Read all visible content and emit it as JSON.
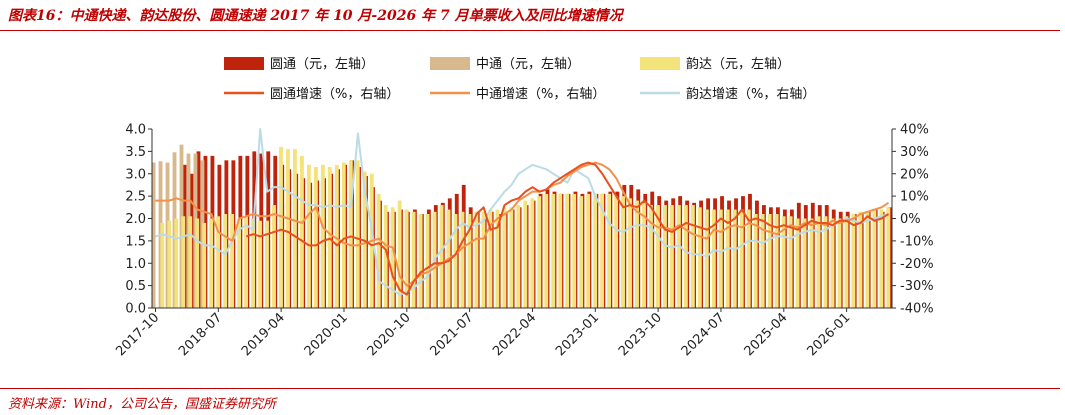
{
  "title": "图表16：中通快递、韵达股份、圆通速递 2017 年 10 月-2026 年 7 月单票收入及同比增速情况",
  "source": "资料来源：Wind，公司公告，国盛证券研究所",
  "colors": {
    "yto_bar": "#c0230b",
    "zto_bar": "#d7b98d",
    "yunda_bar": "#f4e27a",
    "yto_line": "#e8501e",
    "zto_line": "#f2914a",
    "yunda_line": "#bcdbe6",
    "accent": "#c00000"
  },
  "chart_data": {
    "type": "bar",
    "title": "",
    "xlabel": "",
    "ylabel": "",
    "ylim": [
      0,
      4
    ],
    "y2lim": [
      -40,
      40
    ],
    "y_ticks": [
      "0.0",
      "0.5",
      "1.0",
      "1.5",
      "2.0",
      "2.5",
      "3.0",
      "3.5",
      "4.0"
    ],
    "y2_ticks": [
      "-40%",
      "-30%",
      "-20%",
      "-10%",
      "0%",
      "10%",
      "20%",
      "30%",
      "40%"
    ],
    "x_tick_labels": [
      "2017-10",
      "2018-07",
      "2019-04",
      "2020-01",
      "2020-10",
      "2021-07",
      "2022-04",
      "2023-01",
      "2023-10",
      "2024-07",
      "2025-04",
      "2026-01"
    ],
    "legend_position": "top",
    "grid": false,
    "x_start": "2017-10",
    "x_end": "2026-07",
    "bar_series": [
      {
        "name": "圆通（元，左轴）",
        "color": "#c0230b",
        "start": "2018-02",
        "values": [
          3.2,
          3.0,
          3.5,
          3.4,
          3.4,
          3.2,
          3.3,
          3.3,
          3.4,
          3.4,
          3.5,
          3.45,
          3.5,
          3.4,
          3.2,
          3.1,
          3.0,
          2.9,
          2.8,
          2.85,
          2.9,
          3.0,
          3.1,
          3.2,
          3.3,
          3.15,
          2.95,
          2.7,
          2.4,
          2.15,
          2.15,
          2.2,
          2.15,
          2.2,
          2.1,
          2.2,
          2.3,
          2.35,
          2.45,
          2.55,
          2.75,
          2.25,
          2.15,
          2.1,
          2.15,
          2.1,
          2.15,
          2.2,
          2.25,
          2.3,
          2.4,
          2.55,
          2.65,
          2.6,
          2.55,
          2.55,
          2.6,
          2.55,
          2.6,
          2.55,
          2.55,
          2.6,
          2.6,
          2.75,
          2.75,
          2.65,
          2.55,
          2.6,
          2.5,
          2.4,
          2.45,
          2.5,
          2.4,
          2.35,
          2.4,
          2.45,
          2.45,
          2.5,
          2.4,
          2.45,
          2.5,
          2.55,
          2.4,
          2.3,
          2.25,
          2.25,
          2.2,
          2.2,
          2.35,
          2.3,
          2.35,
          2.3,
          2.3,
          2.2,
          2.15,
          2.15,
          2.1,
          2.1,
          2.15,
          2.2,
          2.15,
          2.25,
          2.2,
          2.2,
          2.25,
          2.35,
          2.45,
          2.3,
          2.2,
          2.3,
          2.3,
          2.25
        ]
      },
      {
        "name": "中通（元，左轴）",
        "color": "#d7b98d",
        "start": "2017-10",
        "end": "2018-05",
        "values": [
          3.25,
          3.28,
          3.25,
          3.48,
          3.65,
          3.45,
          3.45,
          3.3
        ]
      },
      {
        "name": "韵达（元，左轴）",
        "color": "#f4e27a",
        "start": "2017-11",
        "values": [
          1.9,
          1.95,
          2.0,
          2.05,
          2.05,
          2.0,
          1.9,
          2.0,
          2.05,
          2.1,
          2.1,
          2.0,
          2.05,
          2.0,
          1.95,
          1.95,
          2.3,
          3.6,
          3.55,
          3.55,
          3.4,
          3.2,
          3.15,
          3.2,
          3.15,
          3.2,
          3.25,
          3.3,
          3.3,
          3.05,
          3.0,
          2.55,
          2.3,
          2.25,
          2.4,
          2.2,
          2.15,
          2.1,
          2.1,
          2.15,
          2.3,
          2.2,
          2.1,
          2.15,
          2.1,
          2.15,
          2.15,
          2.2,
          2.2,
          2.25,
          2.25,
          2.3,
          2.4,
          2.45,
          2.5,
          2.55,
          2.55,
          2.55,
          2.55,
          2.55,
          2.5,
          2.55,
          2.55,
          2.55,
          2.55,
          2.5,
          2.5,
          2.45,
          2.4,
          2.35,
          2.3,
          2.3,
          2.3,
          2.3,
          2.3,
          2.3,
          2.3,
          2.25,
          2.2,
          2.2,
          2.2,
          2.2,
          2.2,
          2.2,
          2.2,
          2.1,
          2.1,
          2.1,
          2.1,
          2.05,
          2.05,
          2.0,
          2.0,
          2.0,
          2.05,
          2.05,
          2.0,
          2.0,
          2.05,
          2.1,
          2.15,
          2.15,
          2.2,
          2.2,
          2.25,
          2.2,
          2.25,
          2.25,
          2.2,
          2.1,
          2.05,
          2.05,
          2.1
        ]
      }
    ],
    "line_series": [
      {
        "name": "圆通增速（%，右轴）",
        "color": "#e8501e",
        "start": "2018-11",
        "values": [
          -8,
          -7,
          -8,
          -7,
          -6,
          -5,
          -6,
          -8,
          -10,
          -12,
          -12,
          -10,
          -9,
          -12,
          -9,
          -8,
          -9,
          -10,
          -12,
          -11,
          -14,
          -26,
          -32,
          -34,
          -28,
          -24,
          -22,
          -20,
          -20,
          -19,
          -16,
          -10,
          -5,
          2,
          5,
          -5,
          -4,
          6,
          8,
          9,
          12,
          14,
          12,
          13,
          16,
          18,
          20,
          22,
          24,
          25,
          24,
          20,
          15,
          10,
          5,
          6,
          5,
          8,
          5,
          0,
          -5,
          -6,
          -4,
          -2,
          -3,
          -4,
          -5,
          -3,
          0,
          -2,
          0,
          4,
          -1,
          0,
          -1,
          -3,
          -4,
          -3,
          -4,
          -5,
          -3,
          -1,
          -2,
          -2,
          -3,
          -1,
          -1,
          -3,
          -2,
          1,
          -1,
          0,
          2,
          3,
          1,
          3,
          1,
          2,
          3,
          4,
          2,
          0,
          -1,
          2,
          0,
          1,
          2,
          1,
          4,
          5,
          7,
          4,
          3,
          0,
          3
        ]
      },
      {
        "name": "中通增速（%，右轴）",
        "color": "#f2914a",
        "start": "2017-10",
        "values": [
          8,
          8,
          8,
          9,
          8,
          8,
          4,
          3,
          2,
          -6,
          -8,
          -10,
          0,
          1,
          2,
          1,
          1,
          2,
          1,
          0,
          -1,
          -2,
          2,
          5,
          -4,
          -7,
          -9,
          -11,
          -12,
          -12,
          -11,
          -10,
          -9,
          -12,
          -13,
          -26,
          -30,
          -28,
          -25,
          -24,
          -22,
          -20,
          -18,
          -16,
          -13,
          -11,
          -9,
          -9,
          -3,
          0,
          2,
          4,
          8,
          10,
          12,
          12,
          13,
          15,
          16,
          19,
          21,
          23,
          24,
          25,
          24,
          22,
          18,
          12,
          6,
          3,
          1,
          -2,
          -4,
          -4,
          -5,
          -3,
          -5,
          -7,
          -8,
          -9,
          -5,
          -6,
          -4,
          -3,
          -4,
          -2,
          -3,
          -5,
          -6,
          -7,
          -5,
          -3,
          -4,
          -2,
          -3,
          -2,
          -3,
          -1,
          -2,
          -1,
          0,
          2,
          3,
          4,
          5,
          7,
          10,
          15,
          14,
          16,
          19,
          14,
          15,
          12
        ]
      },
      {
        "name": "韵达增速（%，右轴）",
        "color": "#bcdbe6",
        "start": "2017-10",
        "values": [
          -8,
          -7,
          -8,
          -9,
          -8,
          -7,
          -10,
          -12,
          -12,
          -14,
          -16,
          -10,
          -5,
          -3,
          -5,
          40,
          12,
          14,
          14,
          12,
          10,
          8,
          6,
          6,
          5,
          6,
          5,
          6,
          5,
          38,
          12,
          -5,
          -28,
          -30,
          -32,
          -34,
          -33,
          -31,
          -28,
          -26,
          -18,
          -14,
          -10,
          -5,
          -2,
          -4,
          -3,
          -1,
          4,
          8,
          12,
          15,
          20,
          22,
          24,
          23,
          22,
          20,
          18,
          16,
          22,
          20,
          18,
          10,
          4,
          -2,
          -5,
          -6,
          -4,
          -3,
          -3,
          -4,
          -8,
          -12,
          -13,
          -12,
          -15,
          -16,
          -16,
          -17,
          -14,
          -15,
          -13,
          -14,
          -12,
          -10,
          -10,
          -11,
          -9,
          -8,
          -8,
          -9,
          -7,
          -6,
          -5,
          -6,
          -5,
          -3,
          -2,
          0,
          -1,
          -2,
          -1,
          0,
          1,
          2,
          3,
          4,
          6,
          10,
          12,
          14,
          10,
          12
        ]
      }
    ]
  }
}
